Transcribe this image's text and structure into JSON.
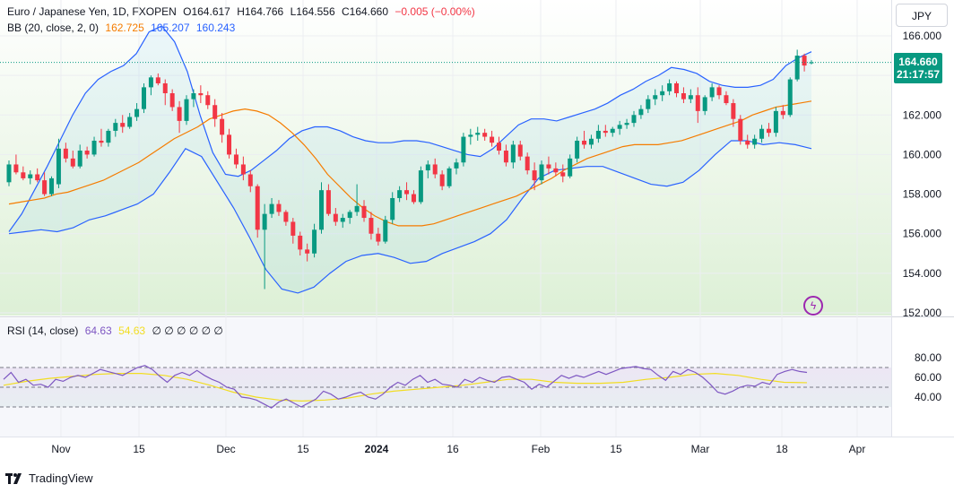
{
  "legend": {
    "symbol": "Euro / Japanese Yen, 1D, FXOPEN",
    "open": "O164.617",
    "high": "H164.766",
    "low": "L164.556",
    "close": "C164.660",
    "change": "−0.005 (−0.00%)",
    "bb_label": "BB (20, close, 2, 0)",
    "bb_basis": "162.725",
    "bb_upper": "165.207",
    "bb_lower": "160.243",
    "rsi_label": "RSI (14, close)",
    "rsi_value": "64.63",
    "rsi_ma": "54.63",
    "rsi_extra": "∅ ∅ ∅ ∅ ∅ ∅"
  },
  "currency": "JPY",
  "last_price": "164.660",
  "countdown": "21:17:57",
  "brand": "TradingView",
  "colors": {
    "up": "#089981",
    "down": "#f23645",
    "bb_basis": "#f57c00",
    "bb_band": "#2962ff",
    "rsi": "#7e57c2",
    "rsi_ma": "#f2dd22"
  },
  "chart_data": [
    {
      "type": "candlestick",
      "title": "Euro / Japanese Yen, 1D, FXOPEN",
      "y_ticks": [
        "152.000",
        "154.000",
        "156.000",
        "158.000",
        "160.000",
        "162.000",
        "164.000",
        "166.000"
      ],
      "x_ticks": [
        "Nov",
        "15",
        "Dec",
        "15",
        "2024",
        "16",
        "Feb",
        "15",
        "Mar",
        "18",
        "Apr"
      ],
      "ylim": [
        152.0,
        167.1
      ],
      "last_price": 164.66,
      "candles": [
        [
          158.6,
          159.7,
          158.4,
          159.5
        ],
        [
          159.5,
          160.0,
          159.0,
          159.1
        ],
        [
          159.1,
          159.4,
          158.7,
          158.8
        ],
        [
          158.8,
          159.2,
          158.5,
          159.0
        ],
        [
          159.0,
          159.3,
          158.6,
          158.7
        ],
        [
          158.7,
          159.1,
          157.9,
          158.0
        ],
        [
          158.0,
          158.9,
          157.9,
          158.8
        ],
        [
          158.5,
          160.8,
          158.3,
          160.3
        ],
        [
          160.3,
          160.6,
          159.6,
          159.8
        ],
        [
          159.8,
          160.2,
          159.3,
          159.4
        ],
        [
          159.4,
          160.5,
          159.3,
          160.2
        ],
        [
          160.2,
          160.4,
          159.8,
          160.0
        ],
        [
          160.0,
          160.9,
          159.9,
          160.7
        ],
        [
          160.7,
          161.3,
          160.4,
          160.6
        ],
        [
          160.6,
          161.3,
          160.4,
          161.2
        ],
        [
          161.2,
          161.8,
          160.9,
          161.6
        ],
        [
          161.6,
          162.0,
          161.1,
          161.4
        ],
        [
          161.4,
          162.1,
          161.3,
          161.9
        ],
        [
          161.9,
          162.6,
          161.7,
          162.3
        ],
        [
          162.3,
          163.6,
          162.1,
          163.4
        ],
        [
          163.4,
          164.0,
          163.0,
          163.9
        ],
        [
          163.9,
          164.1,
          163.5,
          163.6
        ],
        [
          163.6,
          163.8,
          162.5,
          163.1
        ],
        [
          163.1,
          163.3,
          162.2,
          162.4
        ],
        [
          162.4,
          162.7,
          161.1,
          161.7
        ],
        [
          161.7,
          163.0,
          161.5,
          162.8
        ],
        [
          162.8,
          163.3,
          162.4,
          163.1
        ],
        [
          163.1,
          163.5,
          162.6,
          163.0
        ],
        [
          163.0,
          163.2,
          162.3,
          162.5
        ],
        [
          162.5,
          162.8,
          161.4,
          161.8
        ],
        [
          161.8,
          162.1,
          160.6,
          161.0
        ],
        [
          161.0,
          161.3,
          159.8,
          160.0
        ],
        [
          160.0,
          160.3,
          159.3,
          159.5
        ],
        [
          159.5,
          159.9,
          158.7,
          159.0
        ],
        [
          159.0,
          159.2,
          158.1,
          158.4
        ],
        [
          158.4,
          158.5,
          155.8,
          156.2
        ],
        [
          156.2,
          157.5,
          153.2,
          157.0
        ],
        [
          157.0,
          157.8,
          156.8,
          157.5
        ],
        [
          157.5,
          157.7,
          156.9,
          157.1
        ],
        [
          157.1,
          157.2,
          156.4,
          156.6
        ],
        [
          156.6,
          156.8,
          155.5,
          155.9
        ],
        [
          155.9,
          156.1,
          154.9,
          155.2
        ],
        [
          155.2,
          155.5,
          154.6,
          155.0
        ],
        [
          155.0,
          156.5,
          154.8,
          156.2
        ],
        [
          156.2,
          158.6,
          156.0,
          158.2
        ],
        [
          158.2,
          158.5,
          156.9,
          157.0
        ],
        [
          157.0,
          157.3,
          156.4,
          156.6
        ],
        [
          156.6,
          157.0,
          156.3,
          156.8
        ],
        [
          156.8,
          157.2,
          156.5,
          157.1
        ],
        [
          157.1,
          158.5,
          156.9,
          157.4
        ],
        [
          157.4,
          157.7,
          156.6,
          156.8
        ],
        [
          156.8,
          157.1,
          155.7,
          156.0
        ],
        [
          156.0,
          156.3,
          155.4,
          155.6
        ],
        [
          155.6,
          156.9,
          155.5,
          156.7
        ],
        [
          156.7,
          158.1,
          156.5,
          157.8
        ],
        [
          157.8,
          158.4,
          157.6,
          158.2
        ],
        [
          158.2,
          158.6,
          157.7,
          158.0
        ],
        [
          158.0,
          158.2,
          157.5,
          157.6
        ],
        [
          157.6,
          159.4,
          157.5,
          159.2
        ],
        [
          159.2,
          159.7,
          158.8,
          159.5
        ],
        [
          159.5,
          159.8,
          158.8,
          159.0
        ],
        [
          159.0,
          159.2,
          158.2,
          158.4
        ],
        [
          158.4,
          159.4,
          158.3,
          159.3
        ],
        [
          159.3,
          159.8,
          159.0,
          159.6
        ],
        [
          159.6,
          161.1,
          159.4,
          160.9
        ],
        [
          160.9,
          161.3,
          160.5,
          161.0
        ],
        [
          161.0,
          161.4,
          160.7,
          161.1
        ],
        [
          161.1,
          161.3,
          160.7,
          160.9
        ],
        [
          160.9,
          161.2,
          160.4,
          160.6
        ],
        [
          160.6,
          160.9,
          160.0,
          160.2
        ],
        [
          160.2,
          160.5,
          159.4,
          159.6
        ],
        [
          159.6,
          160.7,
          159.3,
          160.5
        ],
        [
          160.5,
          160.7,
          159.7,
          159.9
        ],
        [
          159.9,
          160.1,
          159.0,
          159.2
        ],
        [
          159.2,
          159.6,
          158.2,
          158.7
        ],
        [
          158.7,
          159.7,
          158.5,
          159.5
        ],
        [
          159.5,
          159.9,
          159.0,
          159.3
        ],
        [
          159.3,
          159.6,
          158.9,
          159.1
        ],
        [
          159.1,
          159.5,
          158.6,
          158.9
        ],
        [
          158.9,
          160.0,
          158.8,
          159.8
        ],
        [
          159.8,
          160.9,
          159.6,
          160.7
        ],
        [
          160.7,
          161.2,
          160.3,
          160.5
        ],
        [
          160.5,
          161.0,
          160.3,
          160.8
        ],
        [
          160.8,
          161.5,
          160.6,
          161.2
        ],
        [
          161.2,
          161.5,
          160.9,
          161.1
        ],
        [
          161.1,
          161.4,
          160.9,
          161.3
        ],
        [
          161.3,
          161.7,
          161.0,
          161.5
        ],
        [
          161.5,
          161.8,
          161.3,
          161.6
        ],
        [
          161.6,
          162.2,
          161.4,
          162.0
        ],
        [
          162.0,
          162.5,
          161.8,
          162.3
        ],
        [
          162.3,
          163.0,
          162.1,
          162.8
        ],
        [
          162.8,
          163.3,
          162.5,
          163.0
        ],
        [
          163.0,
          163.5,
          162.7,
          163.2
        ],
        [
          163.2,
          163.8,
          163.0,
          163.6
        ],
        [
          163.6,
          163.7,
          162.9,
          163.1
        ],
        [
          163.1,
          163.4,
          162.6,
          162.8
        ],
        [
          162.8,
          163.3,
          162.6,
          163.0
        ],
        [
          163.0,
          163.4,
          161.6,
          162.2
        ],
        [
          162.2,
          163.0,
          162.0,
          162.9
        ],
        [
          162.9,
          163.6,
          162.7,
          163.4
        ],
        [
          163.4,
          163.5,
          162.8,
          163.0
        ],
        [
          163.0,
          163.2,
          162.5,
          162.6
        ],
        [
          162.6,
          162.8,
          161.4,
          161.8
        ],
        [
          161.8,
          162.0,
          160.5,
          160.7
        ],
        [
          160.7,
          161.0,
          160.3,
          160.5
        ],
        [
          160.5,
          161.0,
          160.3,
          160.8
        ],
        [
          160.8,
          161.5,
          160.6,
          161.3
        ],
        [
          161.3,
          161.6,
          160.9,
          161.1
        ],
        [
          161.1,
          162.4,
          160.9,
          162.2
        ],
        [
          162.2,
          162.5,
          161.8,
          162.0
        ],
        [
          162.0,
          163.9,
          161.9,
          163.8
        ],
        [
          163.8,
          165.3,
          163.7,
          165.0
        ],
        [
          165.0,
          165.1,
          164.2,
          164.5
        ],
        [
          164.62,
          164.77,
          164.56,
          164.66
        ]
      ],
      "bb_basis": [
        157.5,
        157.6,
        157.7,
        157.8,
        158.0,
        158.1,
        158.3,
        158.5,
        158.7,
        159.0,
        159.3,
        159.6,
        160.0,
        160.4,
        160.8,
        161.1,
        161.4,
        161.8,
        162.0,
        162.2,
        162.3,
        162.2,
        162.0,
        161.6,
        161.1,
        160.5,
        159.8,
        159.0,
        158.4,
        157.8,
        157.3,
        156.9,
        156.6,
        156.4,
        156.4,
        156.4,
        156.5,
        156.7,
        156.9,
        157.1,
        157.3,
        157.5,
        157.7,
        157.9,
        158.2,
        158.5,
        158.8,
        159.2,
        159.5,
        159.8,
        160.0,
        160.2,
        160.4,
        160.5,
        160.5,
        160.5,
        160.6,
        160.7,
        160.9,
        161.1,
        161.3,
        161.5,
        161.7,
        162.0,
        162.2,
        162.4,
        162.5,
        162.6,
        162.7
      ],
      "bb_upper": [
        156.1,
        157.0,
        158.2,
        159.4,
        160.7,
        162.0,
        163.1,
        163.8,
        164.2,
        164.5,
        165.1,
        166.2,
        166.5,
        165.7,
        164.2,
        162.0,
        160.1,
        159.0,
        158.9,
        159.2,
        159.7,
        160.2,
        160.8,
        161.2,
        161.4,
        161.4,
        161.2,
        160.9,
        160.7,
        160.6,
        160.6,
        160.7,
        160.7,
        160.6,
        160.4,
        160.2,
        160.0,
        159.9,
        160.3,
        160.9,
        161.5,
        161.8,
        161.8,
        161.7,
        161.9,
        162.1,
        162.3,
        162.6,
        163.0,
        163.3,
        163.7,
        164.0,
        164.4,
        164.3,
        164.1,
        163.7,
        163.5,
        163.4,
        163.4,
        163.5,
        163.8,
        164.5,
        164.9,
        165.2
      ],
      "bb_lower": [
        156.0,
        156.1,
        156.2,
        156.1,
        156.3,
        156.7,
        156.9,
        157.2,
        157.5,
        158.0,
        159.1,
        160.3,
        159.9,
        158.6,
        157.3,
        155.8,
        154.2,
        153.2,
        153.0,
        153.3,
        154.0,
        154.6,
        154.9,
        155.0,
        154.8,
        154.5,
        154.6,
        155.0,
        155.3,
        155.6,
        156.0,
        156.7,
        157.8,
        158.8,
        159.2,
        159.3,
        159.4,
        159.4,
        159.1,
        158.8,
        158.5,
        158.4,
        158.6,
        159.2,
        160.0,
        160.7,
        160.7,
        160.5,
        160.6,
        160.5,
        160.3
      ]
    },
    {
      "type": "line",
      "title": "RSI (14, close)",
      "y_ticks": [
        "40.00",
        "60.00",
        "80.00"
      ],
      "ylim": [
        28,
        81
      ],
      "levels": [
        30,
        50,
        70
      ],
      "series": [
        {
          "name": "RSI",
          "values": [
            58,
            65,
            55,
            58,
            52,
            53,
            50,
            58,
            56,
            60,
            62,
            60,
            64,
            68,
            66,
            64,
            62,
            66,
            70,
            72,
            68,
            61,
            55,
            62,
            65,
            62,
            67,
            62,
            58,
            55,
            50,
            48,
            40,
            39,
            37,
            33,
            29,
            35,
            38,
            34,
            30,
            34,
            38,
            46,
            43,
            38,
            40,
            43,
            45,
            40,
            38,
            43,
            50,
            55,
            52,
            58,
            62,
            55,
            58,
            53,
            52,
            50,
            58,
            55,
            60,
            57,
            55,
            60,
            61,
            58,
            55,
            48,
            53,
            50,
            56,
            62,
            59,
            62,
            60,
            63,
            66,
            63,
            66,
            69,
            70,
            71,
            69,
            68,
            62,
            57,
            66,
            63,
            68,
            65,
            60,
            53,
            45,
            43,
            46,
            50,
            52,
            51,
            55,
            53,
            63,
            66,
            68,
            66,
            65
          ]
        },
        {
          "name": "RSI MA",
          "values": [
            52,
            56,
            59,
            61,
            63,
            64,
            64,
            62,
            58,
            52,
            45,
            40,
            37,
            36,
            37,
            39,
            43,
            46,
            48,
            50,
            52,
            55,
            58,
            58,
            55,
            54,
            54,
            55,
            58,
            60,
            63,
            64,
            62,
            58,
            55,
            54.6
          ]
        }
      ]
    }
  ]
}
